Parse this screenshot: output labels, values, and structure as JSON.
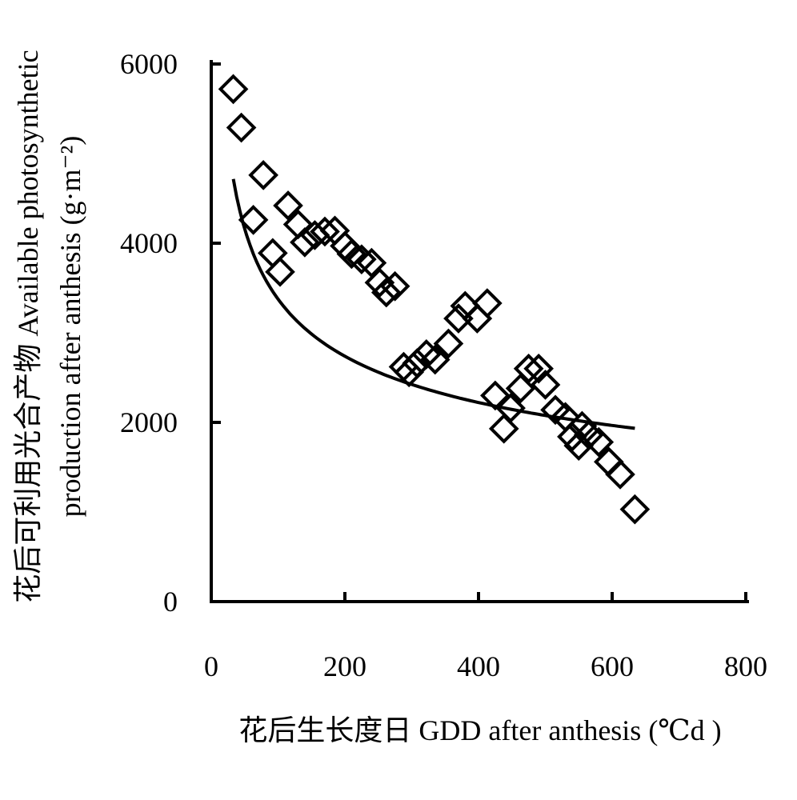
{
  "chart_data": {
    "type": "scatter",
    "xlabel": "花后生长度日  GDD after anthesis (℃d )",
    "ylabel_line1": "花后可利用光合产物  Available photosynthetic",
    "ylabel_line2": "production after anthesis (g·m⁻²)",
    "xlim": [
      0,
      800
    ],
    "ylim": [
      0,
      6000
    ],
    "xticks": [
      0,
      200,
      400,
      600,
      800
    ],
    "yticks": [
      0,
      2000,
      4000,
      6000
    ],
    "grid": false,
    "marker": "open-diamond",
    "series": [
      {
        "points": [
          [
            33,
            5720
          ],
          [
            45,
            5290
          ],
          [
            63,
            4260
          ],
          [
            78,
            4760
          ],
          [
            92,
            3890
          ],
          [
            103,
            3680
          ],
          [
            115,
            4420
          ],
          [
            130,
            4210
          ],
          [
            140,
            4010
          ],
          [
            155,
            4090
          ],
          [
            170,
            4130
          ],
          [
            185,
            4140
          ],
          [
            200,
            3970
          ],
          [
            210,
            3880
          ],
          [
            225,
            3820
          ],
          [
            240,
            3780
          ],
          [
            252,
            3560
          ],
          [
            262,
            3450
          ],
          [
            275,
            3520
          ],
          [
            288,
            2620
          ],
          [
            296,
            2560
          ],
          [
            308,
            2660
          ],
          [
            322,
            2760
          ],
          [
            335,
            2700
          ],
          [
            355,
            2880
          ],
          [
            370,
            3160
          ],
          [
            380,
            3300
          ],
          [
            398,
            3160
          ],
          [
            413,
            3330
          ],
          [
            425,
            2300
          ],
          [
            438,
            1930
          ],
          [
            448,
            2160
          ],
          [
            463,
            2380
          ],
          [
            475,
            2600
          ],
          [
            490,
            2600
          ],
          [
            500,
            2420
          ],
          [
            515,
            2140
          ],
          [
            530,
            2060
          ],
          [
            540,
            1840
          ],
          [
            550,
            1740
          ],
          [
            555,
            1960
          ],
          [
            565,
            1860
          ],
          [
            580,
            1780
          ],
          [
            595,
            1560
          ],
          [
            612,
            1420
          ],
          [
            634,
            1030
          ]
        ]
      }
    ],
    "fit_line": {
      "type": "power",
      "a": 13545,
      "b": -0.3017,
      "x_range": [
        33,
        634
      ]
    }
  }
}
